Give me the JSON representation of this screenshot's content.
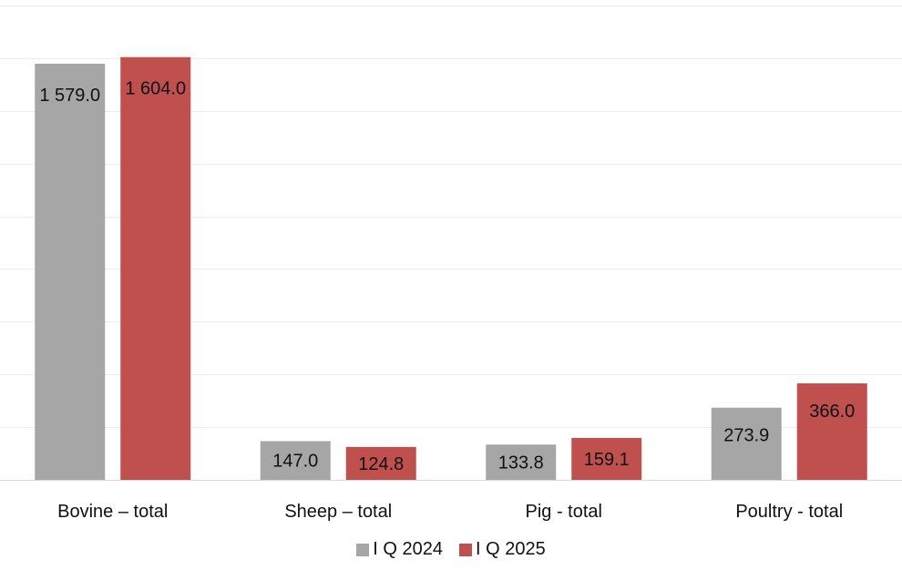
{
  "chart_data": {
    "type": "bar",
    "title": "",
    "xlabel": "",
    "ylabel": "",
    "categories": [
      "Bovine – total",
      "Sheep – total",
      "Pig - total",
      "Poultry -  total"
    ],
    "series": [
      {
        "name": "I Q 2024",
        "color": "#a6a6a6",
        "values": [
          1579.0,
          147.0,
          133.8,
          273.9
        ],
        "labels": [
          "1 579.0",
          "147.0",
          "133.8",
          "273.9"
        ]
      },
      {
        "name": "I Q 2025",
        "color": "#c0504d",
        "values": [
          1604.0,
          124.8,
          159.1,
          366.0
        ],
        "labels": [
          "1 604.0",
          "124.8",
          "159.1",
          "366.0"
        ]
      }
    ],
    "ylim": [
      0,
      1800
    ],
    "grid": true,
    "y_tick_labels_shown": false,
    "legend": "bottom"
  }
}
